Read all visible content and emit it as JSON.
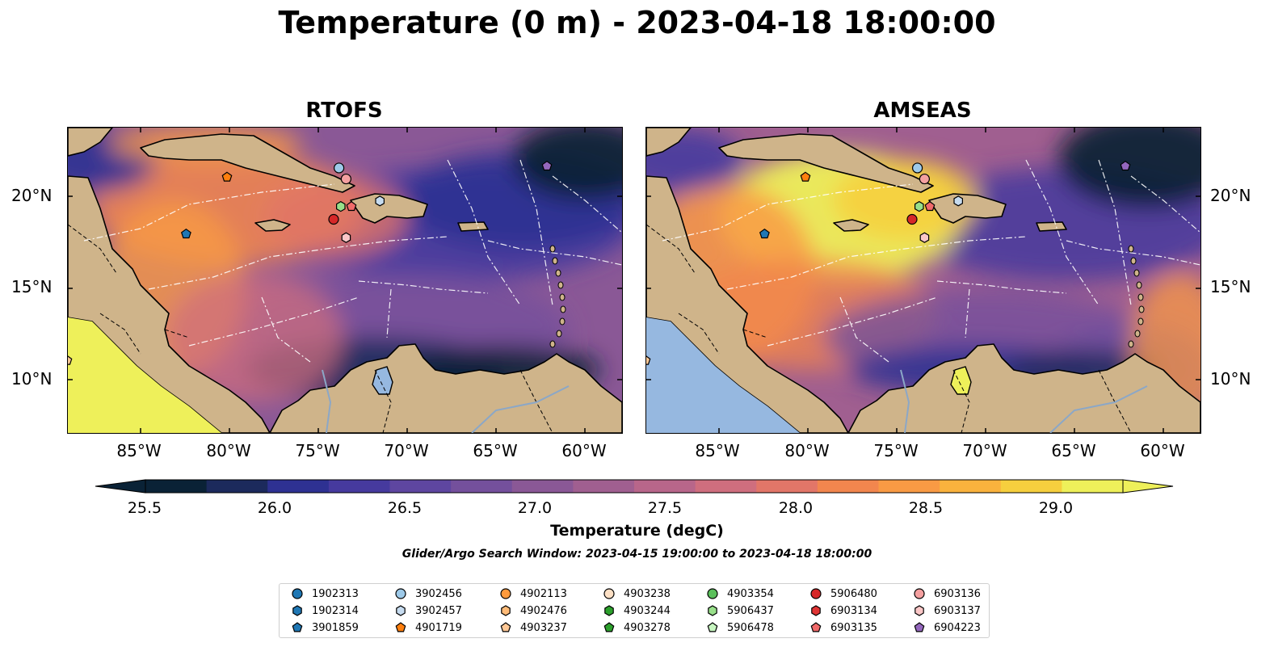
{
  "title": "Temperature (0 m) - 2023-04-18 18:00:00",
  "panels": [
    {
      "name": "RTOFS"
    },
    {
      "name": "AMSEAS"
    }
  ],
  "lat_labels": [
    "20°N",
    "15°N",
    "10°N"
  ],
  "lon_labels": [
    "85°W",
    "80°W",
    "75°W",
    "70°W",
    "65°W",
    "60°W"
  ],
  "colorbar": {
    "label": "Temperature (degC)",
    "ticks": [
      "25.5",
      "26.0",
      "26.5",
      "27.0",
      "27.5",
      "28.0",
      "28.5",
      "29.0"
    ],
    "colors": [
      "#0a2236",
      "#1c2a5c",
      "#2e3192",
      "#463a9e",
      "#5e46a0",
      "#74509c",
      "#8a5896",
      "#a05f90",
      "#b8668a",
      "#cf6e7e",
      "#e27668",
      "#f2864e",
      "#f99a44",
      "#fab23d",
      "#f6cf3e",
      "#eef05a"
    ]
  },
  "search_window": "Glider/Argo Search Window: 2023-04-15 19:00:00 to 2023-04-18 18:00:00",
  "legend": [
    {
      "id": "1902313",
      "shape": "circle",
      "color": "#1f77b4"
    },
    {
      "id": "1902314",
      "shape": "hexagon",
      "color": "#1f77b4"
    },
    {
      "id": "3901859",
      "shape": "pentagon",
      "color": "#1f77b4"
    },
    {
      "id": "3902456",
      "shape": "circle",
      "color": "#9ecae9"
    },
    {
      "id": "3902457",
      "shape": "hexagon",
      "color": "#c6dbef"
    },
    {
      "id": "4901719",
      "shape": "pentagon",
      "color": "#ff7f0e"
    },
    {
      "id": "4902113",
      "shape": "circle",
      "color": "#ff9a3c"
    },
    {
      "id": "4902476",
      "shape": "hexagon",
      "color": "#ffbb78"
    },
    {
      "id": "4903237",
      "shape": "pentagon",
      "color": "#ffc896"
    },
    {
      "id": "4903238",
      "shape": "circle",
      "color": "#fde0c5"
    },
    {
      "id": "4903244",
      "shape": "hexagon",
      "color": "#2ca02c"
    },
    {
      "id": "4903278",
      "shape": "pentagon",
      "color": "#2ca02c"
    },
    {
      "id": "4903354",
      "shape": "circle",
      "color": "#5bbf5b"
    },
    {
      "id": "5906437",
      "shape": "hexagon",
      "color": "#98df8a"
    },
    {
      "id": "5906478",
      "shape": "pentagon",
      "color": "#c7f5c0"
    },
    {
      "id": "5906480",
      "shape": "circle",
      "color": "#d62728"
    },
    {
      "id": "6903134",
      "shape": "hexagon",
      "color": "#e03535"
    },
    {
      "id": "6903135",
      "shape": "pentagon",
      "color": "#f06a6a"
    },
    {
      "id": "6903136",
      "shape": "circle",
      "color": "#f4a0a0"
    },
    {
      "id": "6903137",
      "shape": "hexagon",
      "color": "#fbc7c7"
    },
    {
      "id": "6904223",
      "shape": "pentagon",
      "color": "#9467bd"
    }
  ],
  "land_color": "#cfb48a",
  "ocean_outside_color": "#96b8e0"
}
